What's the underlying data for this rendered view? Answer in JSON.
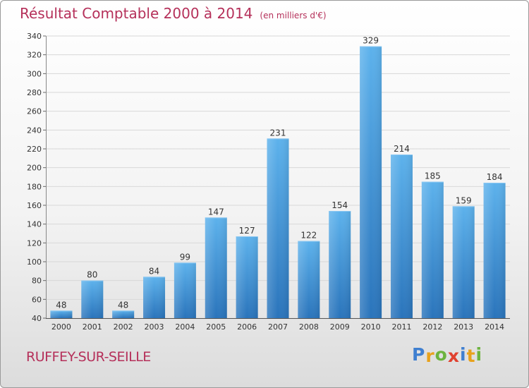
{
  "header": {
    "title": "Résultat Comptable 2000 à 2014",
    "unit": "(en milliers d'€)"
  },
  "footer": {
    "commune": "RUFFEY-SUR-SEILLE",
    "brand": "Proxiti",
    "brand_letters": [
      {
        "ch": "P",
        "color": "#3f7fd0"
      },
      {
        "ch": "r",
        "color": "#e8a21c"
      },
      {
        "ch": "o",
        "color": "#6cb33e"
      },
      {
        "ch": "x",
        "color": "#e0412f"
      },
      {
        "ch": "i",
        "color": "#3f7fd0"
      },
      {
        "ch": "t",
        "color": "#e8a21c"
      },
      {
        "ch": "i",
        "color": "#6cb33e"
      }
    ]
  },
  "colors": {
    "title": "#b5305a",
    "bar_light": "#5aaee8",
    "bar_dark": "#2d7ac0",
    "grid": "#d8d8d8",
    "axis_text": "#333333"
  },
  "chart_data": {
    "type": "bar",
    "categories": [
      "2000",
      "2001",
      "2002",
      "2003",
      "2004",
      "2005",
      "2006",
      "2007",
      "2008",
      "2009",
      "2010",
      "2011",
      "2012",
      "2013",
      "2014"
    ],
    "values": [
      48,
      80,
      48,
      84,
      99,
      147,
      127,
      231,
      122,
      154,
      329,
      214,
      185,
      159,
      184
    ],
    "title": "Résultat Comptable 2000 à 2014",
    "xlabel": "",
    "ylabel": "",
    "ylim": [
      40,
      340
    ],
    "yticks": [
      40,
      60,
      80,
      100,
      120,
      140,
      160,
      180,
      200,
      220,
      240,
      260,
      280,
      300,
      320,
      340
    ],
    "grid": true,
    "data_labels": true
  }
}
